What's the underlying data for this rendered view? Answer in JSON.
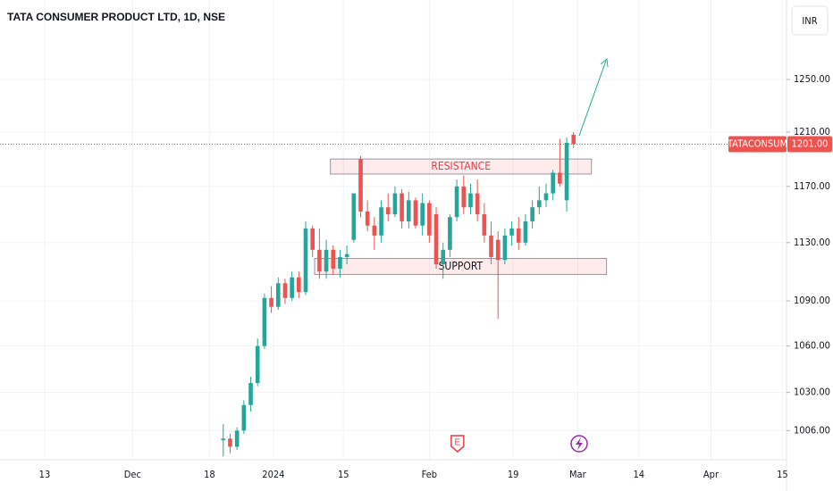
{
  "chart_data": {
    "type": "candlestick",
    "title": "TATA CONSUMER PRODUCT LTD, 1D, NSE",
    "currency": "INR",
    "symbol": "TATACONSUM",
    "log_scale": true,
    "grid": true,
    "up_color": "#26a69a",
    "down_color": "#ef5350",
    "ylim": [
      988,
      1313
    ],
    "yticks": [
      {
        "value": 1006,
        "label": "1006.00"
      },
      {
        "value": 1030,
        "label": "1030.00"
      },
      {
        "value": 1060,
        "label": "1060.00"
      },
      {
        "value": 1090,
        "label": "1090.00"
      },
      {
        "value": 1130,
        "label": "1130.00"
      },
      {
        "value": 1170,
        "label": "1170.00"
      },
      {
        "value": 1210,
        "label": "1210.00"
      },
      {
        "value": 1250,
        "label": "1250.00"
      }
    ],
    "xlim": [
      -32.5,
      82
    ],
    "xticks": [
      {
        "value": -26,
        "label": "13"
      },
      {
        "value": -13.2,
        "label": "Dec"
      },
      {
        "value": -2,
        "label": "18"
      },
      {
        "value": 7.3,
        "label": "2024"
      },
      {
        "value": 17.5,
        "label": "15"
      },
      {
        "value": 30,
        "label": "Feb"
      },
      {
        "value": 42.2,
        "label": "19"
      },
      {
        "value": 51.6,
        "label": "Mar"
      },
      {
        "value": 60.5,
        "label": "14"
      },
      {
        "value": 71,
        "label": "Apr"
      },
      {
        "value": 81.4,
        "label": "15"
      }
    ],
    "x": [
      0,
      1,
      2,
      3,
      4,
      5,
      6,
      7,
      8,
      9,
      10,
      11,
      12,
      13,
      14,
      15,
      16,
      17,
      18,
      19,
      20,
      21,
      22,
      23,
      24,
      25,
      26,
      27,
      28,
      29,
      30,
      31,
      32,
      33,
      34,
      35,
      36,
      37,
      38,
      39,
      40,
      41,
      42,
      43,
      44,
      45,
      46,
      47,
      48,
      49,
      50,
      51
    ],
    "open": [
      1000,
      1001,
      996,
      1006,
      1022,
      1036,
      1060,
      1092,
      1086,
      1102,
      1092,
      1106,
      1096,
      1140,
      1125,
      1110,
      1125,
      1112,
      1120,
      1132,
      1190,
      1152,
      1142,
      1135,
      1155,
      1150,
      1165,
      1145,
      1160,
      1142,
      1158,
      1150,
      1115,
      1125,
      1148,
      1170,
      1155,
      1165,
      1150,
      1135,
      1132,
      1118,
      1135,
      1140,
      1130,
      1145,
      1155,
      1160,
      1165,
      1180,
      1160,
      1208
    ],
    "high": [
      1010,
      1004,
      1008,
      1025,
      1040,
      1065,
      1095,
      1100,
      1106,
      1105,
      1110,
      1110,
      1145,
      1142,
      1140,
      1132,
      1128,
      1125,
      1128,
      1165,
      1192,
      1160,
      1148,
      1160,
      1165,
      1170,
      1168,
      1166,
      1162,
      1165,
      1160,
      1155,
      1130,
      1150,
      1175,
      1178,
      1172,
      1175,
      1158,
      1145,
      1138,
      1140,
      1145,
      1148,
      1150,
      1160,
      1170,
      1172,
      1182,
      1205,
      1206,
      1210
    ],
    "low": [
      990,
      992,
      994,
      1004,
      1018,
      1034,
      1058,
      1082,
      1084,
      1088,
      1090,
      1092,
      1094,
      1120,
      1105,
      1105,
      1108,
      1106,
      1115,
      1130,
      1148,
      1138,
      1125,
      1130,
      1145,
      1148,
      1140,
      1140,
      1140,
      1135,
      1130,
      1112,
      1105,
      1120,
      1145,
      1150,
      1150,
      1145,
      1130,
      1115,
      1078,
      1115,
      1128,
      1125,
      1128,
      1140,
      1150,
      1155,
      1160,
      1170,
      1152,
      1198
    ],
    "close": [
      1001,
      996,
      1006,
      1022,
      1036,
      1060,
      1092,
      1086,
      1102,
      1092,
      1106,
      1096,
      1140,
      1125,
      1110,
      1125,
      1112,
      1120,
      1122,
      1165,
      1152,
      1142,
      1135,
      1155,
      1150,
      1165,
      1145,
      1160,
      1142,
      1158,
      1135,
      1115,
      1125,
      1148,
      1170,
      1155,
      1165,
      1150,
      1135,
      1120,
      1118,
      1135,
      1140,
      1130,
      1145,
      1155,
      1160,
      1165,
      1180,
      1172,
      1202,
      1201
    ],
    "last_price": {
      "value": 1201,
      "label": "1201.00"
    },
    "zones": [
      {
        "label": "RESISTANCE",
        "from": 1179,
        "to": 1190,
        "x0": 15.6,
        "x1": 53.6,
        "color": "#f23645"
      },
      {
        "label": "SUPPORT",
        "from": 1108,
        "to": 1119,
        "x0": 13.3,
        "x1": 55.8,
        "color": "#131722"
      }
    ],
    "events": [
      {
        "label": "E",
        "x": 34.1
      }
    ]
  }
}
